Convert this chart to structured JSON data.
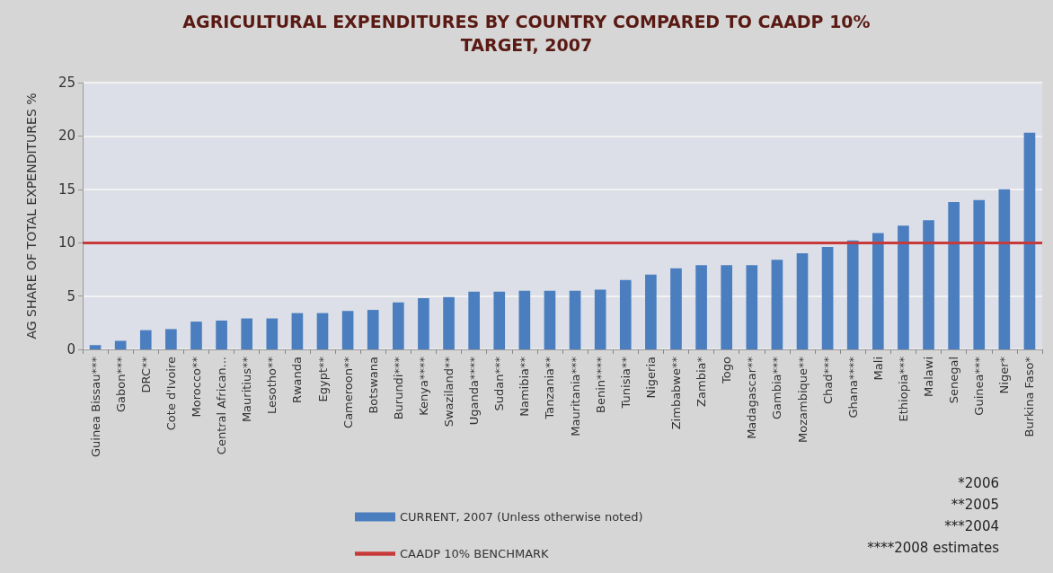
{
  "chart_data": {
    "type": "bar",
    "title": "AGRICULTURAL EXPENDITURES BY COUNTRY COMPARED TO CAADP 10%\nTARGET, 2007",
    "ylabel": "AG SHARE OF TOTAL EXPENDITURES %",
    "categories": [
      "Guinea Bissau***",
      "Gabon***",
      "DRC**",
      "Cote d'Ivoire",
      "Morocco**",
      "Central African...",
      "Mauritius**",
      "Lesotho**",
      "Rwanda",
      "Egypt**",
      "Cameroon**",
      "Botswana",
      "Burundi***",
      "Kenya****",
      "Swaziland**",
      "Uganda****",
      "Sudan***",
      "Namibia**",
      "Tanzania**",
      "Mauritania***",
      "Benin****",
      "Tunisia**",
      "Nigeria",
      "Zimbabwe**",
      "Zambia*",
      "Togo",
      "Madagascar**",
      "Gambia***",
      "Mozambique**",
      "Chad***",
      "Ghana****",
      "Mali",
      "Ethiopia***",
      "Malawi",
      "Senegal",
      "Guinea***",
      "Niger*",
      "Burkina Faso*"
    ],
    "series": [
      {
        "name": "CURRENT, 2007 (Unless otherwise noted)",
        "color": "#4a7ebf",
        "values": [
          0.4,
          0.8,
          1.8,
          1.9,
          2.6,
          2.7,
          2.9,
          2.9,
          3.4,
          3.4,
          3.6,
          3.7,
          4.4,
          4.8,
          4.9,
          5.4,
          5.4,
          5.5,
          5.5,
          5.5,
          5.6,
          6.5,
          7.0,
          7.6,
          7.9,
          7.9,
          7.9,
          8.4,
          9.0,
          9.6,
          10.2,
          10.9,
          11.6,
          12.1,
          13.8,
          14.0,
          15.0,
          20.3
        ]
      }
    ],
    "ref_lines": [
      {
        "axis": "y",
        "value": 10,
        "label": "CAADP 10% BENCHMARK",
        "color": "#c83a3a"
      }
    ],
    "ylim": [
      0,
      25
    ],
    "yticks": [
      0,
      5,
      10,
      15,
      20,
      25
    ],
    "grid": "y",
    "legend": "bottom",
    "annotations": [
      "*2006",
      "**2005",
      "***2004",
      "****2008 estimates"
    ]
  }
}
